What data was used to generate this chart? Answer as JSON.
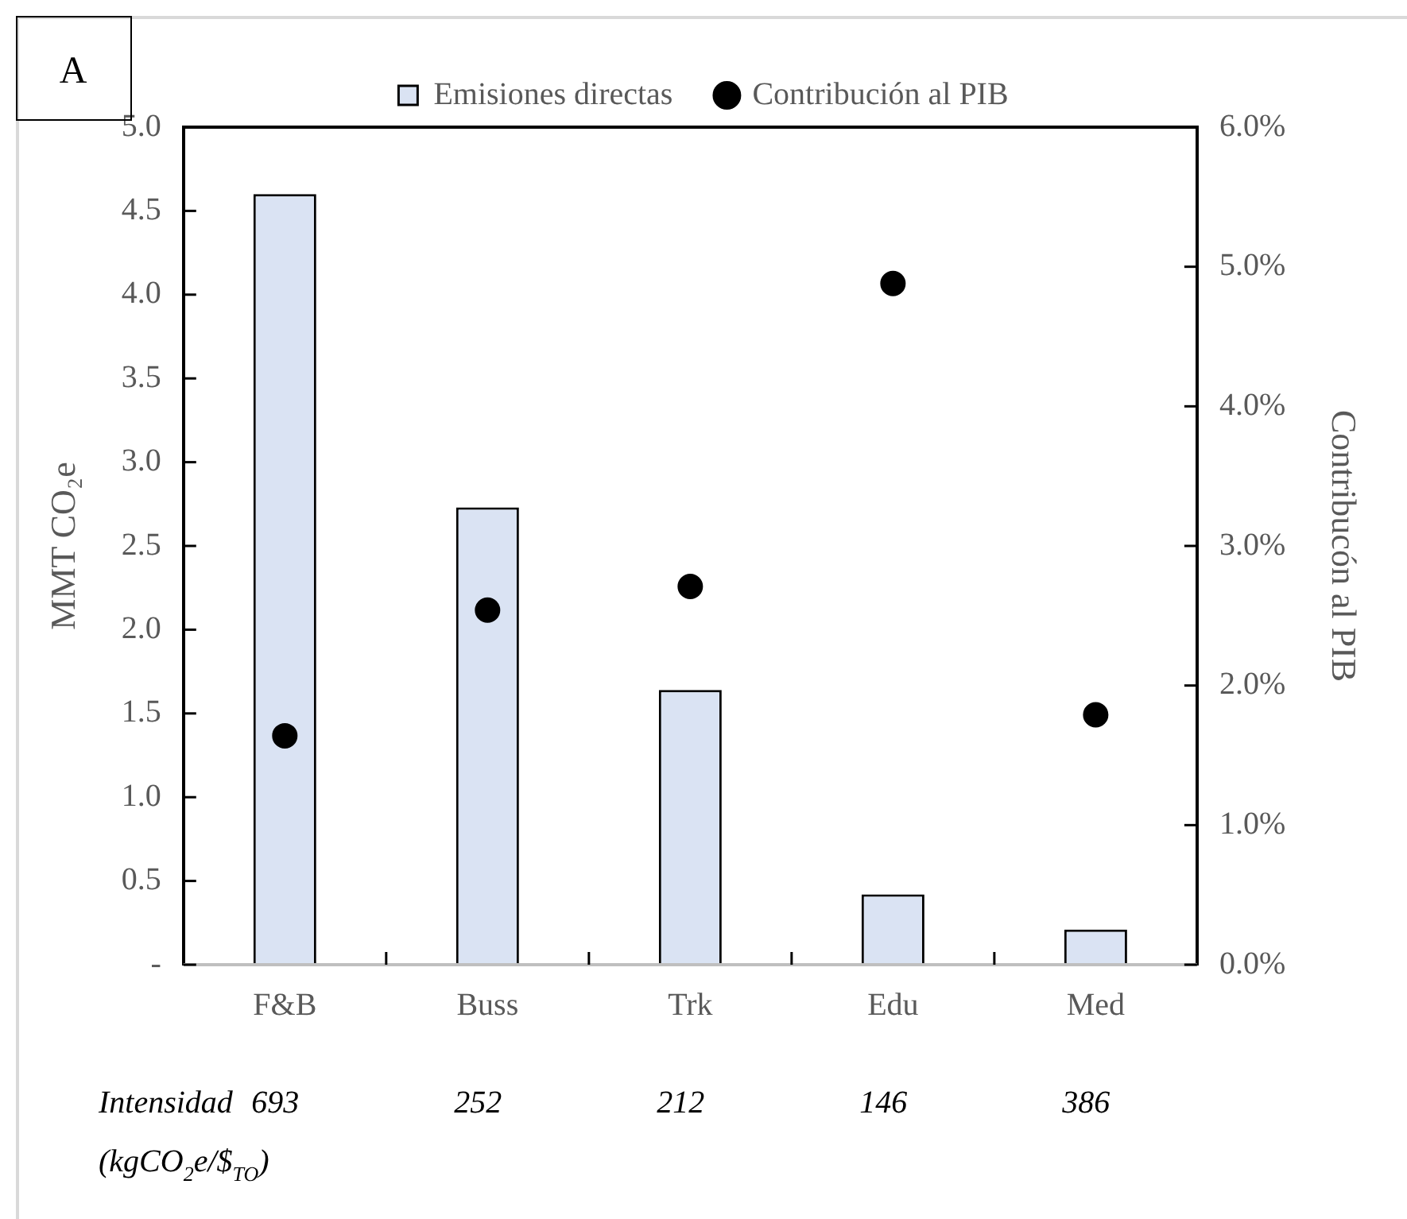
{
  "chart_data": {
    "type": "bar",
    "ylabel": "MMT CO₂e",
    "y2label": "Contribucón al PIB",
    "categories": [
      "F&B",
      "Buss",
      "Trk",
      "Edu",
      "Med"
    ],
    "series": [
      {
        "name": "Emisiones directas",
        "color": "#dae3f3",
        "values": [
          4.6,
          2.73,
          1.64,
          0.42,
          0.21
        ]
      },
      {
        "name": "Contribución al PIB",
        "type": "scatter",
        "axis": "y2",
        "color": "#000000",
        "values": [
          1.64,
          2.54,
          2.71,
          4.88,
          1.79
        ]
      }
    ],
    "ylim": [
      0,
      5
    ],
    "yticks": [
      {
        "value": 0,
        "label": "-"
      },
      {
        "value": 0.5,
        "label": "0.5"
      },
      {
        "value": 1,
        "label": "1.0"
      },
      {
        "value": 1.5,
        "label": "1.5"
      },
      {
        "value": 2,
        "label": "2.0"
      },
      {
        "value": 2.5,
        "label": "2.5"
      },
      {
        "value": 3,
        "label": "3.0"
      },
      {
        "value": 3.5,
        "label": "3.5"
      },
      {
        "value": 4,
        "label": "4.0"
      },
      {
        "value": 4.5,
        "label": "4.5"
      },
      {
        "value": 5,
        "label": "5.0"
      }
    ],
    "y2lim": [
      0,
      6
    ],
    "y2ticks": [
      {
        "value": 0,
        "label": "0.0%"
      },
      {
        "value": 1,
        "label": "1.0%"
      },
      {
        "value": 2,
        "label": "2.0%"
      },
      {
        "value": 3,
        "label": "3.0%"
      },
      {
        "value": 4,
        "label": "4.0%"
      },
      {
        "value": 5,
        "label": "5.0%"
      },
      {
        "value": 6,
        "label": "6.0%"
      }
    ],
    "grid": false,
    "legend": "top",
    "marker": "circle",
    "annotations": [
      "A",
      "Intensidad",
      "693",
      "252",
      "212",
      "146",
      "386",
      "(kgCO$_{2}$e/$$_{TO}$)"
    ]
  }
}
